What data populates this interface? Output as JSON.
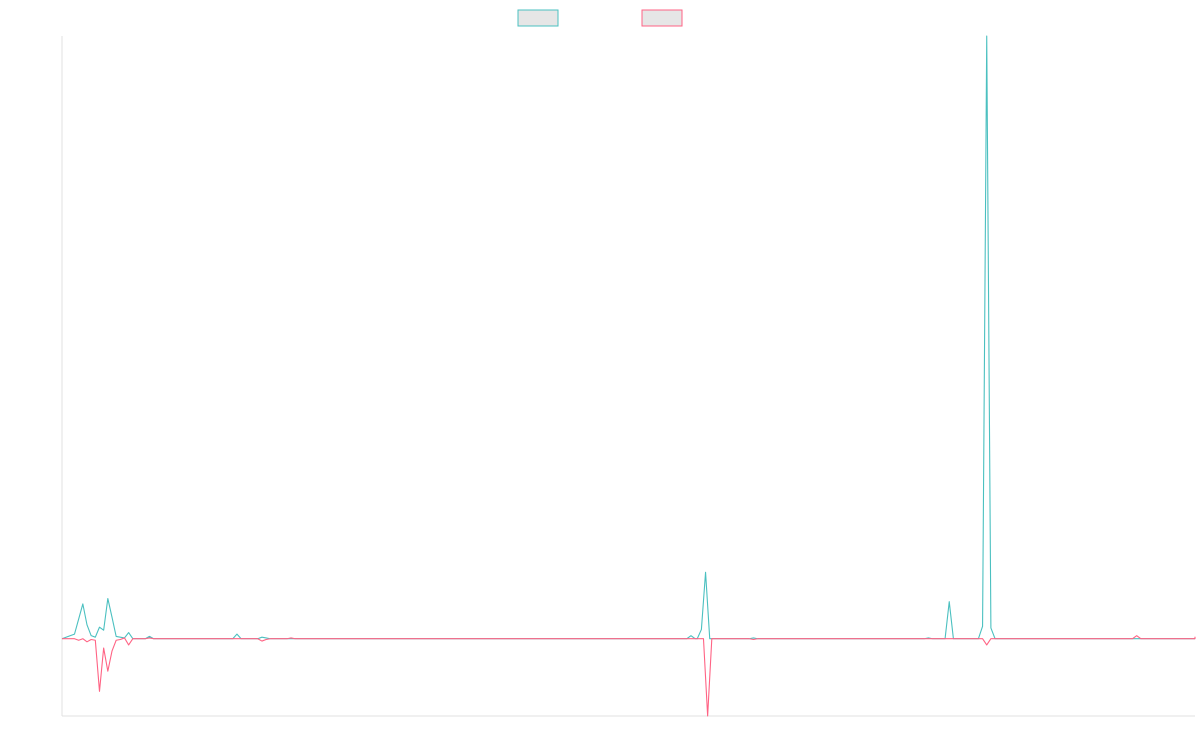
{
  "chart_data": {
    "type": "line",
    "title": "",
    "xlabel": "",
    "ylabel": "",
    "grid": false,
    "legend": {
      "position": "top-center"
    },
    "ylim": [
      -10,
      78
    ],
    "x_count": 273,
    "series": [
      {
        "color": "#4bc0c0",
        "fill": "#e6e6e6",
        "points": [
          [
            0,
            0
          ],
          [
            3,
            0.6
          ],
          [
            5,
            4.5
          ],
          [
            6,
            1.8
          ],
          [
            7,
            0.4
          ],
          [
            8,
            0.2
          ],
          [
            9,
            1.5
          ],
          [
            10,
            1.1
          ],
          [
            11,
            5.2
          ],
          [
            12,
            2.8
          ],
          [
            13,
            0.3
          ],
          [
            14,
            0.2
          ],
          [
            15,
            0.1
          ],
          [
            16,
            0.8
          ],
          [
            17,
            0
          ],
          [
            20,
            0
          ],
          [
            21,
            0.3
          ],
          [
            22,
            0
          ],
          [
            41,
            0
          ],
          [
            42,
            0.6
          ],
          [
            43,
            0
          ],
          [
            47,
            0
          ],
          [
            48,
            0.2
          ],
          [
            49,
            0.1
          ],
          [
            50,
            0
          ],
          [
            150,
            0
          ],
          [
            151,
            0.4
          ],
          [
            152,
            0
          ],
          [
            152.5,
            0
          ],
          [
            153.5,
            1.2
          ],
          [
            154.5,
            8.6
          ],
          [
            155.5,
            0
          ],
          [
            165,
            0
          ],
          [
            166,
            0.1
          ],
          [
            167,
            0
          ],
          [
            207,
            0
          ],
          [
            208,
            0.1
          ],
          [
            209,
            0
          ],
          [
            212,
            0
          ],
          [
            213,
            4.8
          ],
          [
            214,
            0
          ],
          [
            218,
            0
          ],
          [
            220,
            0
          ],
          [
            221,
            1.6
          ],
          [
            222,
            78
          ],
          [
            223,
            1.4
          ],
          [
            224,
            0
          ],
          [
            272,
            0
          ]
        ]
      },
      {
        "color": "#ff6384",
        "fill": "#e6e6e6",
        "points": [
          [
            0,
            0
          ],
          [
            3,
            0
          ],
          [
            4,
            -0.2
          ],
          [
            5,
            0
          ],
          [
            6,
            -0.4
          ],
          [
            7,
            -0.1
          ],
          [
            8,
            -0.2
          ],
          [
            9,
            -6.8
          ],
          [
            10,
            -1.2
          ],
          [
            11,
            -4.2
          ],
          [
            12,
            -1.6
          ],
          [
            13,
            -0.2
          ],
          [
            14,
            -0.1
          ],
          [
            15,
            0.1
          ],
          [
            16,
            -0.8
          ],
          [
            17,
            0
          ],
          [
            20,
            0
          ],
          [
            21,
            0.1
          ],
          [
            22,
            0
          ],
          [
            47,
            0
          ],
          [
            48,
            -0.3
          ],
          [
            49,
            -0.1
          ],
          [
            50,
            0
          ],
          [
            54,
            0
          ],
          [
            55,
            0.1
          ],
          [
            56,
            0
          ],
          [
            154,
            0
          ],
          [
            155,
            -10
          ],
          [
            156,
            0
          ],
          [
            165,
            0
          ],
          [
            166,
            -0.1
          ],
          [
            167,
            0
          ],
          [
            221,
            0
          ],
          [
            222,
            -0.8
          ],
          [
            223,
            0
          ],
          [
            257,
            0
          ],
          [
            258,
            0.4
          ],
          [
            259,
            0
          ],
          [
            281,
            0
          ],
          [
            282,
            0.2
          ],
          [
            283,
            0
          ],
          [
            272,
            0
          ]
        ]
      }
    ]
  }
}
